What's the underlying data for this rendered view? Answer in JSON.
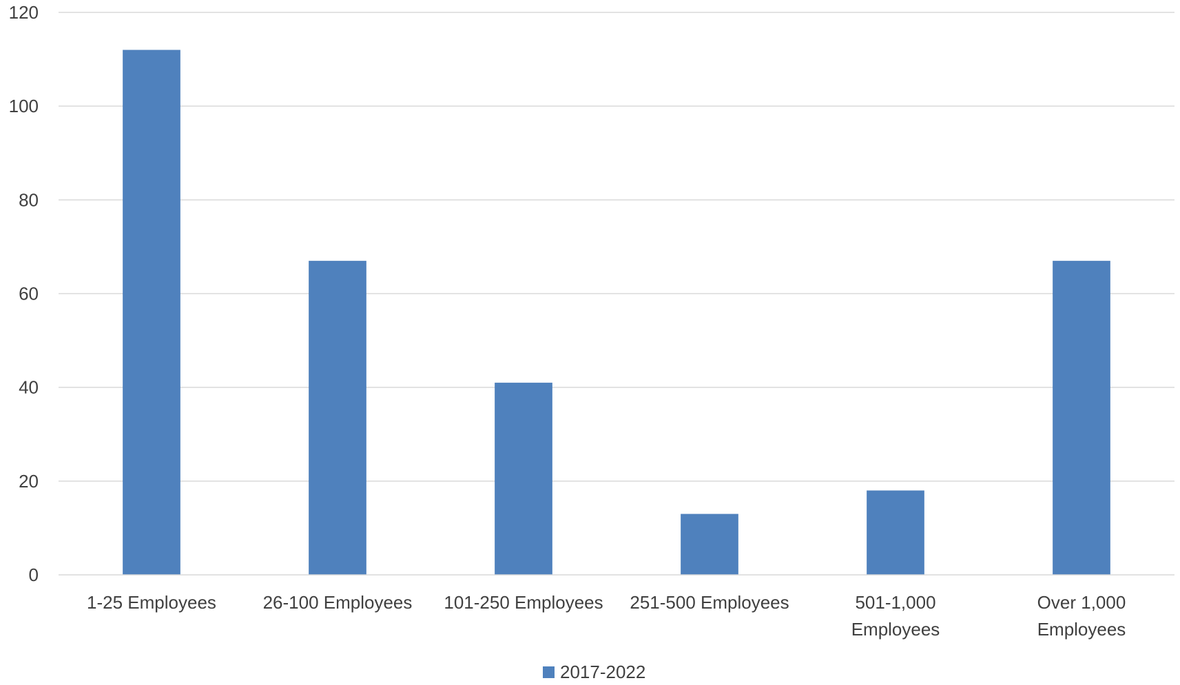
{
  "chart_data": {
    "type": "bar",
    "title": "",
    "xlabel": "",
    "ylabel": "",
    "categories": [
      [
        "1-25 Employees"
      ],
      [
        "26-100 Employees"
      ],
      [
        "101-250 Employees"
      ],
      [
        "251-500 Employees"
      ],
      [
        "501-1,000",
        "Employees"
      ],
      [
        "Over 1,000",
        "Employees"
      ]
    ],
    "series": [
      {
        "name": "2017-2022",
        "color": "#4f81bd",
        "values": [
          112,
          67,
          41,
          13,
          18,
          67
        ]
      }
    ],
    "ylim": [
      0,
      120
    ],
    "yticks": [
      0,
      20,
      40,
      60,
      80,
      100,
      120
    ],
    "grid": true,
    "legend": "bottom"
  }
}
